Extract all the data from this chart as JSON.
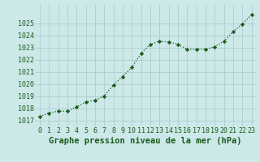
{
  "x": [
    0,
    1,
    2,
    3,
    4,
    5,
    6,
    7,
    8,
    9,
    10,
    11,
    12,
    13,
    14,
    15,
    16,
    17,
    18,
    19,
    20,
    21,
    22,
    23
  ],
  "y": [
    1017.3,
    1017.6,
    1017.75,
    1017.75,
    1018.1,
    1018.5,
    1018.65,
    1019.0,
    1019.9,
    1020.6,
    1021.35,
    1022.5,
    1023.25,
    1023.5,
    1023.45,
    1023.25,
    1022.85,
    1022.85,
    1022.85,
    1023.05,
    1023.5,
    1024.3,
    1024.9,
    1025.7
  ],
  "xlabel": "Graphe pression niveau de la mer (hPa)",
  "ylim": [
    1016.5,
    1026.5
  ],
  "xlim": [
    -0.5,
    23.5
  ],
  "yticks": [
    1017,
    1018,
    1019,
    1020,
    1021,
    1022,
    1023,
    1024,
    1025
  ],
  "xticks": [
    0,
    1,
    2,
    3,
    4,
    5,
    6,
    7,
    8,
    9,
    10,
    11,
    12,
    13,
    14,
    15,
    16,
    17,
    18,
    19,
    20,
    21,
    22,
    23
  ],
  "line_color": "#1a5c1a",
  "marker_color": "#1a5c1a",
  "bg_color": "#cce8e8",
  "grid_color": "#aac8c8",
  "label_color": "#1a5c1a",
  "xlabel_fontsize": 7.5,
  "tick_fontsize": 6,
  "marker": "D",
  "markersize": 2.2,
  "linewidth": 0.9,
  "linestyle": ":"
}
